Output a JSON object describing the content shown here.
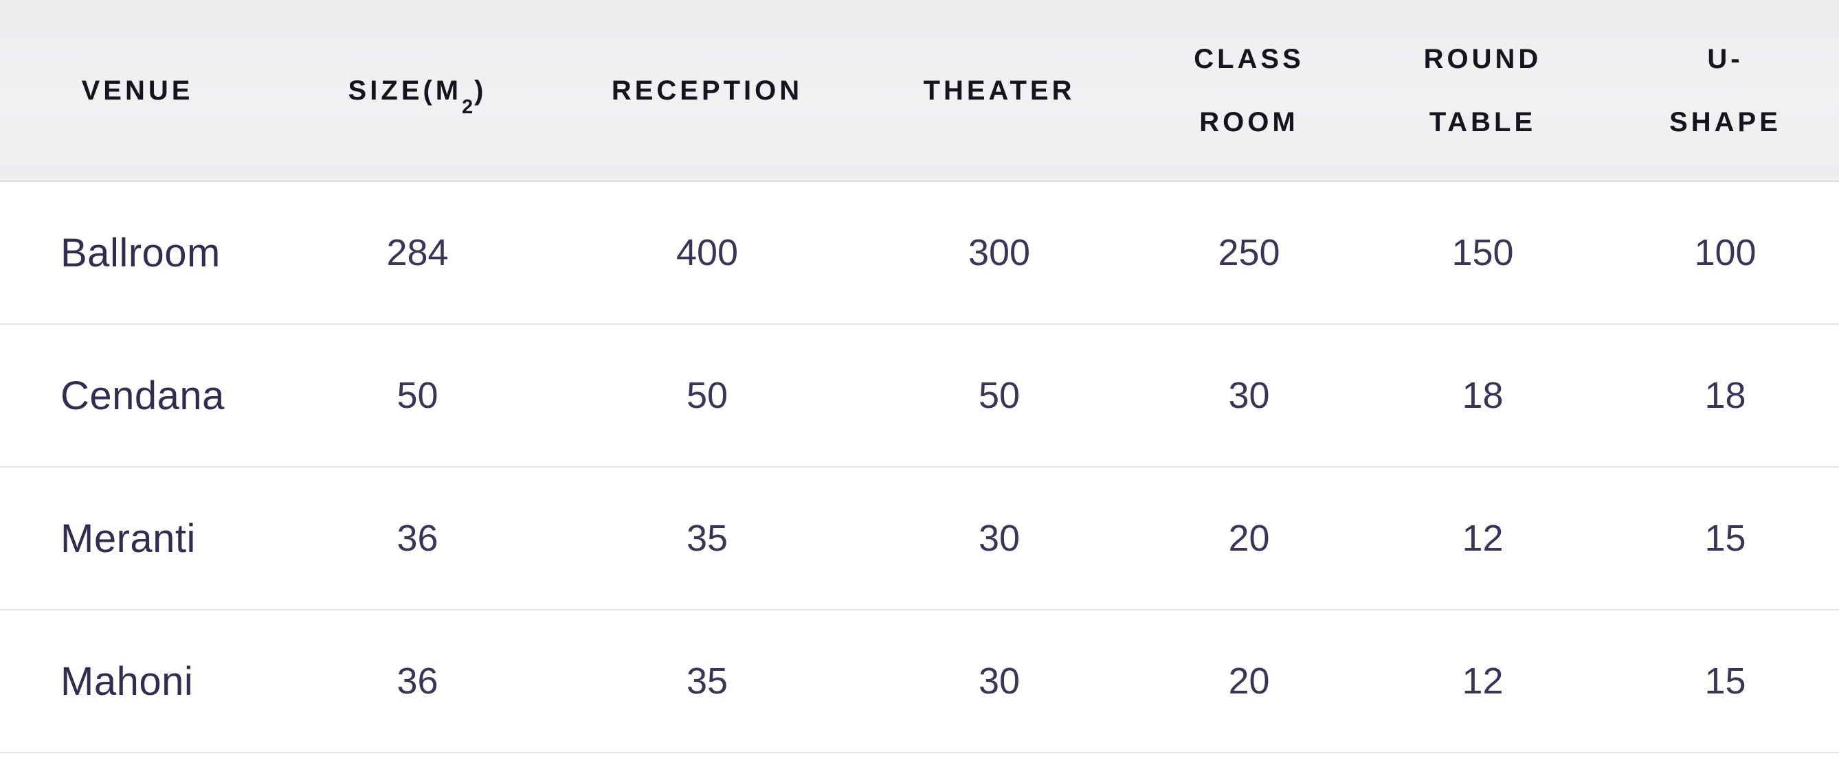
{
  "colors": {
    "header_bg": "#efeff1",
    "header_text": "#15151d",
    "venue_text": "#312d50",
    "number_text": "#3c3457",
    "divider": "#e2e2e8"
  },
  "table": {
    "headers": [
      {
        "id": "venue",
        "line1": "VENUE",
        "line2": ""
      },
      {
        "id": "size",
        "line1": "SIZE(M2)",
        "line2": ""
      },
      {
        "id": "reception",
        "line1": "RECEPTION",
        "line2": ""
      },
      {
        "id": "theater",
        "line1": "THEATER",
        "line2": ""
      },
      {
        "id": "classroom",
        "line1": "CLASS",
        "line2": "ROOM"
      },
      {
        "id": "roundtable",
        "line1": "ROUND",
        "line2": "TABLE"
      },
      {
        "id": "ushape",
        "line1": "U-",
        "line2": "SHAPE"
      }
    ],
    "size_header_parts": {
      "prefix": "SIZE(M",
      "sub": "2",
      "suffix": ")"
    },
    "rows": [
      {
        "venue": "Ballroom",
        "values": [
          "284",
          "400",
          "300",
          "250",
          "150",
          "100"
        ]
      },
      {
        "venue": "Cendana",
        "values": [
          "50",
          "50",
          "50",
          "30",
          "18",
          "18"
        ]
      },
      {
        "venue": "Meranti",
        "values": [
          "36",
          "35",
          "30",
          "20",
          "12",
          "15"
        ]
      },
      {
        "venue": "Mahoni",
        "values": [
          "36",
          "35",
          "30",
          "20",
          "12",
          "15"
        ]
      }
    ]
  }
}
